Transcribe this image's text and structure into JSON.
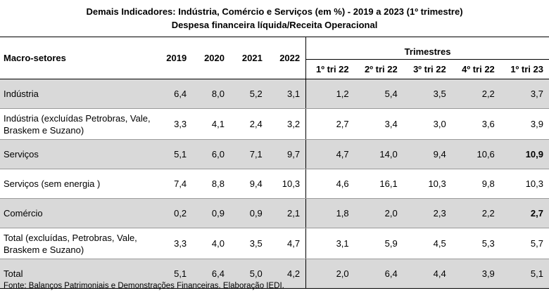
{
  "title_line1": "Demais Indicadores: Indústria, Comércio e Serviços (em %) - 2019 a 2023 (1º trimestre)",
  "title_line2": "Despesa financeira líquida/Receita Operacional",
  "header": {
    "macro": "Macro-setores",
    "years": [
      "2019",
      "2020",
      "2021",
      "2022"
    ],
    "trimestres": "Trimestres",
    "quarters": [
      "1º tri 22",
      "2º tri 22",
      "3º tri 22",
      "4º tri 22",
      "1º tri 23"
    ]
  },
  "rows": [
    {
      "label": "Indústria",
      "values": [
        "6,4",
        "8,0",
        "5,2",
        "3,1",
        "1,2",
        "5,4",
        "3,5",
        "2,2",
        "3,7"
      ]
    },
    {
      "label": "Indústria  (excluídas Petrobras, Vale, Braskem e Suzano)",
      "values": [
        "3,3",
        "4,1",
        "2,4",
        "3,2",
        "2,7",
        "3,4",
        "3,0",
        "3,6",
        "3,9"
      ]
    },
    {
      "label": "Serviços",
      "values": [
        "5,1",
        "6,0",
        "7,1",
        "9,7",
        "4,7",
        "14,0",
        "9,4",
        "10,6",
        "10,9"
      ]
    },
    {
      "label": "Serviços (sem energia )",
      "values": [
        "7,4",
        "8,8",
        "9,4",
        "10,3",
        "4,6",
        "16,1",
        "10,3",
        "9,8",
        "10,3"
      ]
    },
    {
      "label": "Comércio",
      "values": [
        "0,2",
        "0,9",
        "0,9",
        "2,1",
        "1,8",
        "2,0",
        "2,3",
        "2,2",
        "2,7"
      ]
    },
    {
      "label": "Total (excluídas, Petrobras, Vale, Braskem e Suzano)",
      "values": [
        "3,3",
        "4,0",
        "3,5",
        "4,7",
        "3,1",
        "5,9",
        "4,5",
        "5,3",
        "5,7"
      ]
    },
    {
      "label": "Total",
      "values": [
        "5,1",
        "6,4",
        "5,0",
        "4,2",
        "2,0",
        "6,4",
        "4,4",
        "3,9",
        "5,1"
      ]
    }
  ],
  "source": "Fonte: Balanços Patrimoniais e Demonstrações Financeiras. Elaboração IEDI."
}
